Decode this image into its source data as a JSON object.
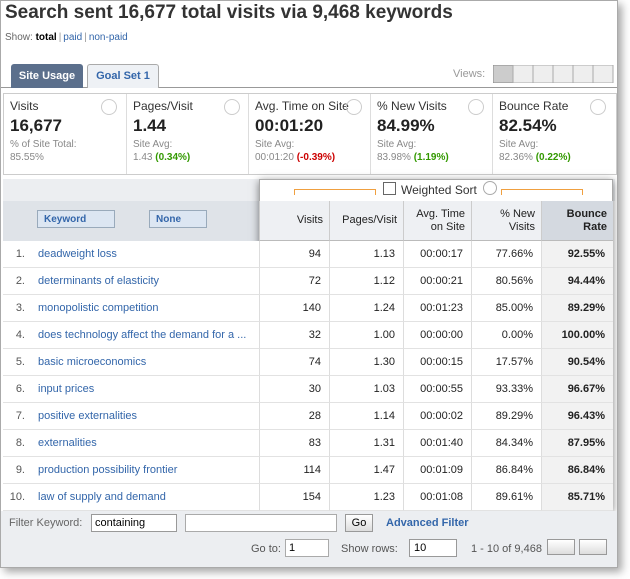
{
  "header": {
    "title": "Search sent 16,677 total visits via 9,468 keywords",
    "show_label": "Show:",
    "show_options": [
      "total",
      "paid",
      "non-paid"
    ]
  },
  "tabs": [
    "Site Usage",
    "Goal Set 1"
  ],
  "views_label": "Views:",
  "summary": [
    {
      "label": "Visits",
      "value": "16,677",
      "sub_label": "% of Site Total:",
      "sub_value": "85.55%"
    },
    {
      "label": "Pages/Visit",
      "value": "1.44",
      "sub_label": "Site Avg:",
      "sub_value": "1.43",
      "change": "(0.34%)"
    },
    {
      "label": "Avg. Time on Site",
      "value": "00:01:20",
      "sub_label": "Site Avg:",
      "sub_value": "00:01:20",
      "change": "(-0.39%)"
    },
    {
      "label": "% New Visits",
      "value": "84.99%",
      "sub_label": "Site Avg:",
      "sub_value": "83.98%",
      "change": "(1.19%)"
    },
    {
      "label": "Bounce Rate",
      "value": "82.54%",
      "sub_label": "Site Avg:",
      "sub_value": "82.36%",
      "change": "(0.22%)"
    }
  ],
  "weighted_sort": "Weighted Sort",
  "table": {
    "dimension_buttons": [
      "Keyword",
      "None"
    ],
    "columns": [
      "Visits",
      "Pages/Visit",
      "Avg. Time on Site",
      "% New Visits",
      "Bounce Rate"
    ],
    "rows": [
      [
        "1.",
        "deadweight loss",
        "94",
        "1.13",
        "00:00:17",
        "77.66%",
        "92.55%"
      ],
      [
        "2.",
        "determinants of elasticity",
        "72",
        "1.12",
        "00:00:21",
        "80.56%",
        "94.44%"
      ],
      [
        "3.",
        "monopolistic competition",
        "140",
        "1.24",
        "00:01:23",
        "85.00%",
        "89.29%"
      ],
      [
        "4.",
        "does technology affect the demand for a ...",
        "32",
        "1.00",
        "00:00:00",
        "0.00%",
        "100.00%"
      ],
      [
        "5.",
        "basic microeconomics",
        "74",
        "1.30",
        "00:00:15",
        "17.57%",
        "90.54%"
      ],
      [
        "6.",
        "input prices",
        "30",
        "1.03",
        "00:00:55",
        "93.33%",
        "96.67%"
      ],
      [
        "7.",
        "positive externalities",
        "28",
        "1.14",
        "00:00:02",
        "89.29%",
        "96.43%"
      ],
      [
        "8.",
        "externalities",
        "83",
        "1.31",
        "00:01:40",
        "84.34%",
        "87.95%"
      ],
      [
        "9.",
        "production possibility frontier",
        "114",
        "1.47",
        "00:01:09",
        "86.84%",
        "86.84%"
      ],
      [
        "10.",
        "law of supply and demand",
        "154",
        "1.23",
        "00:01:08",
        "89.61%",
        "85.71%"
      ]
    ]
  },
  "footer": {
    "filter_label": "Filter Keyword:",
    "filter_mode": "containing",
    "go": "Go",
    "advanced_filter": "Advanced Filter",
    "goto_label": "Go to:",
    "goto_value": "1",
    "show_rows_label": "Show rows:",
    "show_rows_value": "10",
    "range": "1 - 10 of 9,468"
  }
}
